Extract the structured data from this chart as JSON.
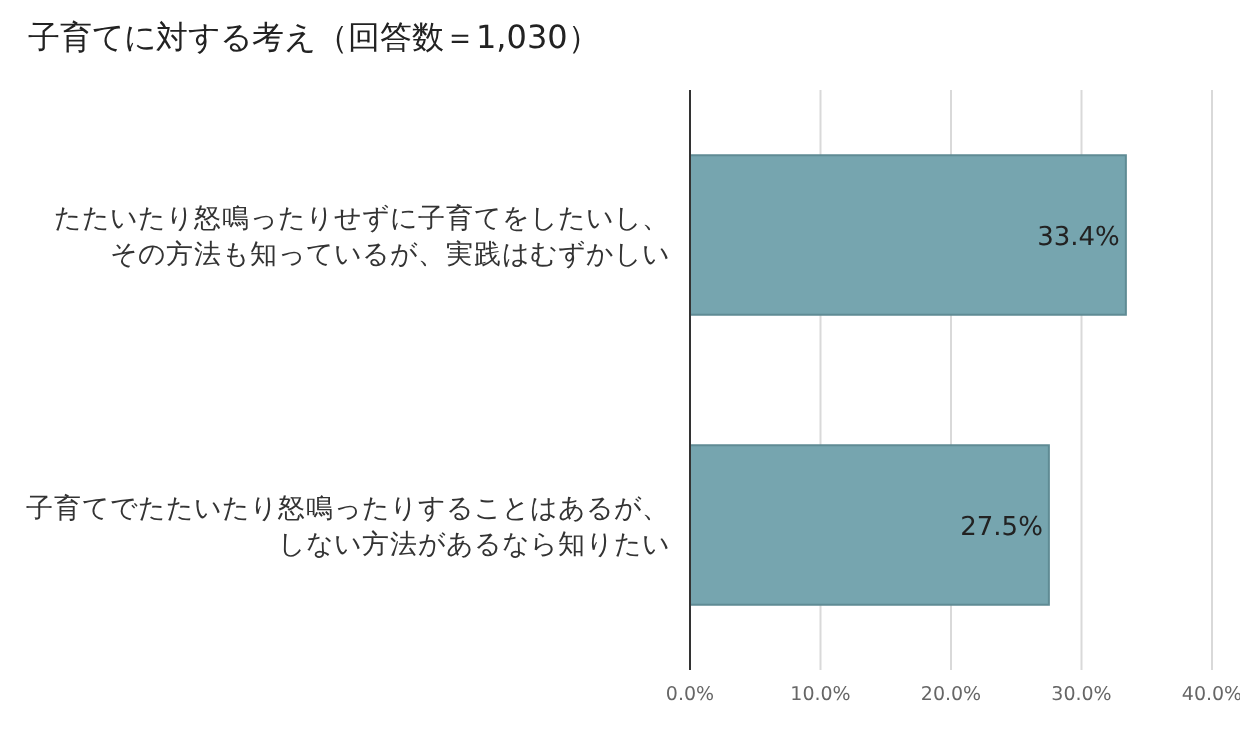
{
  "chart_data": {
    "type": "bar",
    "orientation": "horizontal",
    "title": "子育てに対する考え（回答数＝1,030）",
    "categories": [
      "たたいたり怒鳴ったりせずに子育てをしたいし、その方法も知っているが、実践はむずかしい",
      "子育てでたたいたり怒鳴ったりすることはあるが、しない方法があるなら知りたい"
    ],
    "values": [
      33.4,
      27.5
    ],
    "value_labels": [
      "33.4%",
      "27.5%"
    ],
    "color": "#76a5af",
    "xlim": [
      0,
      40
    ],
    "xticks": [
      {
        "value": 0,
        "label": "0.0%"
      },
      {
        "value": 10,
        "label": "10.0%"
      },
      {
        "value": 20,
        "label": "20.0%"
      },
      {
        "value": 30,
        "label": "30.0%"
      },
      {
        "value": 40,
        "label": "40.0%"
      }
    ],
    "grid": "x"
  }
}
